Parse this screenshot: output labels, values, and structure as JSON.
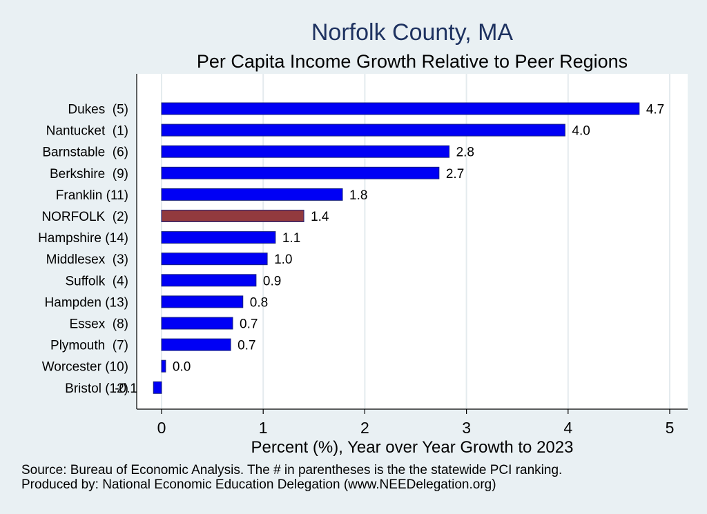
{
  "chart_data": {
    "type": "bar",
    "orientation": "horizontal",
    "title": "Norfolk County, MA",
    "subtitle": "Per Capita Income Growth Relative to Peer Regions",
    "xlabel": "Percent (%), Year over Year Growth to 2023",
    "ylabel": "",
    "xlim": [
      -0.25,
      5.2
    ],
    "xticks": [
      0,
      1,
      2,
      3,
      4,
      5
    ],
    "grid": "vertical",
    "categories": [
      "Dukes  (5)",
      "Nantucket  (1)",
      "Barnstable  (6)",
      "Berkshire  (9)",
      "Franklin (11)",
      "NORFOLK  (2)",
      "Hampshire (14)",
      "Middlesex  (3)",
      "Suffolk  (4)",
      "Hampden (13)",
      "Essex  (8)",
      "Plymouth  (7)",
      "Worcester (10)",
      "Bristol (12)"
    ],
    "values": [
      4.7,
      3.97,
      2.83,
      2.73,
      1.78,
      1.4,
      1.12,
      1.04,
      0.93,
      0.8,
      0.7,
      0.68,
      0.04,
      -0.08
    ],
    "value_labels": [
      "4.7",
      "4.0",
      "2.8",
      "2.7",
      "1.8",
      "1.4",
      "1.1",
      "1.0",
      "0.9",
      "0.8",
      "0.7",
      "0.7",
      "0.0",
      "-0.1"
    ],
    "highlight_category": "NORFOLK  (2)",
    "colors": {
      "default_bar": "#0000f5",
      "highlight_bar": "#923a3e",
      "bar_edge": "#1a237e",
      "title": "#1e3260",
      "background": "#e9f0f3",
      "plot_background": "#ffffff",
      "grid": "#e4ebee"
    }
  },
  "notes": {
    "source": "Source: Bureau of Economic Analysis. The # in parentheses is the the statewide PCI ranking.",
    "producer": "Produced by: National Economic Education Delegation (www.NEEDelegation.org)"
  }
}
